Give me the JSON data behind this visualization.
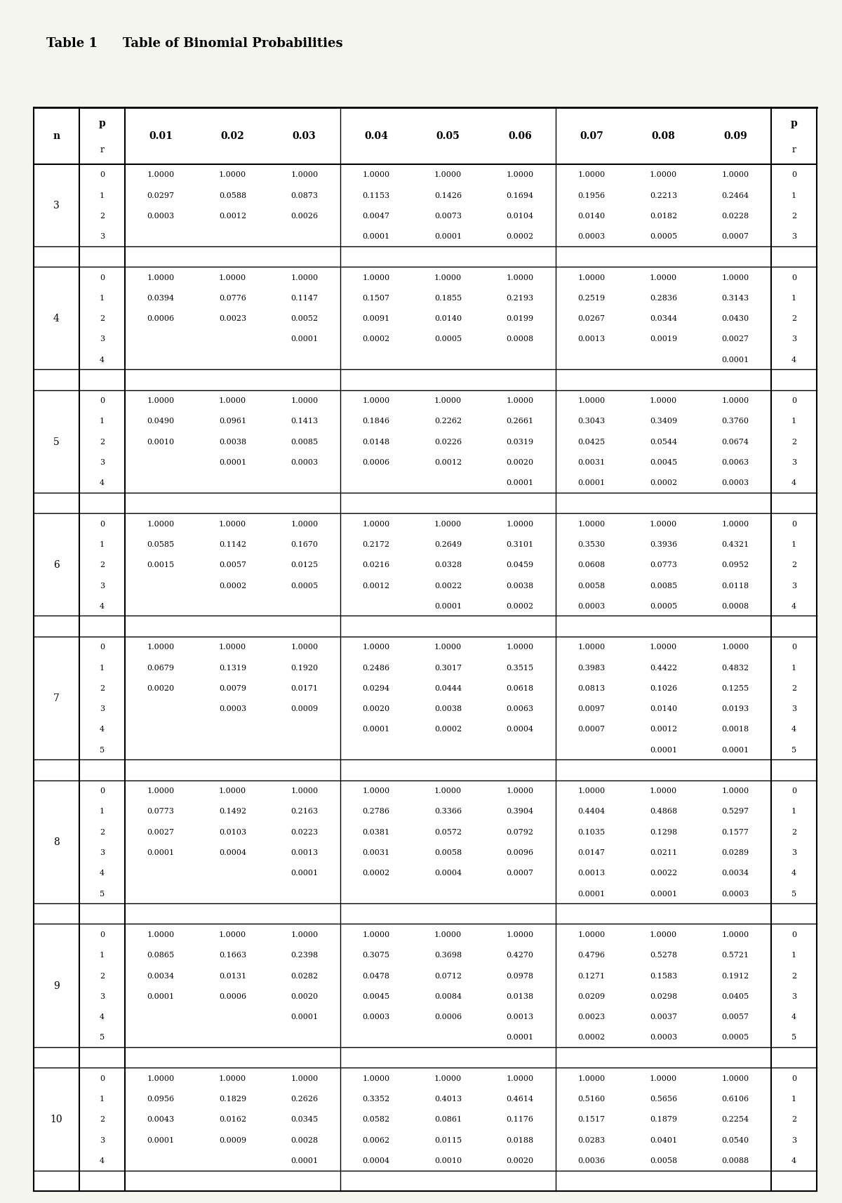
{
  "title_label": "Table 1",
  "title_rest": "   Table of Binomial Probabilities",
  "sections": [
    {
      "n": "3",
      "rows": [
        {
          "r": "0",
          "vals": [
            "1.0000",
            "1.0000",
            "1.0000",
            "1.0000",
            "1.0000",
            "1.0000",
            "1.0000",
            "1.0000",
            "1.0000"
          ]
        },
        {
          "r": "1",
          "vals": [
            "0.0297",
            "0.0588",
            "0.0873",
            "0.1153",
            "0.1426",
            "0.1694",
            "0.1956",
            "0.2213",
            "0.2464"
          ]
        },
        {
          "r": "2",
          "vals": [
            "0.0003",
            "0.0012",
            "0.0026",
            "0.0047",
            "0.0073",
            "0.0104",
            "0.0140",
            "0.0182",
            "0.0228"
          ]
        },
        {
          "r": "3",
          "vals": [
            "",
            "",
            "",
            "0.0001",
            "0.0001",
            "0.0002",
            "0.0003",
            "0.0005",
            "0.0007"
          ]
        }
      ]
    },
    {
      "n": "4",
      "rows": [
        {
          "r": "0",
          "vals": [
            "1.0000",
            "1.0000",
            "1.0000",
            "1.0000",
            "1.0000",
            "1.0000",
            "1.0000",
            "1.0000",
            "1.0000"
          ]
        },
        {
          "r": "1",
          "vals": [
            "0.0394",
            "0.0776",
            "0.1147",
            "0.1507",
            "0.1855",
            "0.2193",
            "0.2519",
            "0.2836",
            "0.3143"
          ]
        },
        {
          "r": "2",
          "vals": [
            "0.0006",
            "0.0023",
            "0.0052",
            "0.0091",
            "0.0140",
            "0.0199",
            "0.0267",
            "0.0344",
            "0.0430"
          ]
        },
        {
          "r": "3",
          "vals": [
            "",
            "",
            "0.0001",
            "0.0002",
            "0.0005",
            "0.0008",
            "0.0013",
            "0.0019",
            "0.0027"
          ]
        },
        {
          "r": "4",
          "vals": [
            "",
            "",
            "",
            "",
            "",
            "",
            "",
            "",
            "0.0001"
          ]
        }
      ]
    },
    {
      "n": "5",
      "rows": [
        {
          "r": "0",
          "vals": [
            "1.0000",
            "1.0000",
            "1.0000",
            "1.0000",
            "1.0000",
            "1.0000",
            "1.0000",
            "1.0000",
            "1.0000"
          ]
        },
        {
          "r": "1",
          "vals": [
            "0.0490",
            "0.0961",
            "0.1413",
            "0.1846",
            "0.2262",
            "0.2661",
            "0.3043",
            "0.3409",
            "0.3760"
          ]
        },
        {
          "r": "2",
          "vals": [
            "0.0010",
            "0.0038",
            "0.0085",
            "0.0148",
            "0.0226",
            "0.0319",
            "0.0425",
            "0.0544",
            "0.0674"
          ]
        },
        {
          "r": "3",
          "vals": [
            "",
            "0.0001",
            "0.0003",
            "0.0006",
            "0.0012",
            "0.0020",
            "0.0031",
            "0.0045",
            "0.0063"
          ]
        },
        {
          "r": "4",
          "vals": [
            "",
            "",
            "",
            "",
            "",
            "0.0001",
            "0.0001",
            "0.0002",
            "0.0003"
          ]
        }
      ]
    },
    {
      "n": "6",
      "rows": [
        {
          "r": "0",
          "vals": [
            "1.0000",
            "1.0000",
            "1.0000",
            "1.0000",
            "1.0000",
            "1.0000",
            "1.0000",
            "1.0000",
            "1.0000"
          ]
        },
        {
          "r": "1",
          "vals": [
            "0.0585",
            "0.1142",
            "0.1670",
            "0.2172",
            "0.2649",
            "0.3101",
            "0.3530",
            "0.3936",
            "0.4321"
          ]
        },
        {
          "r": "2",
          "vals": [
            "0.0015",
            "0.0057",
            "0.0125",
            "0.0216",
            "0.0328",
            "0.0459",
            "0.0608",
            "0.0773",
            "0.0952"
          ]
        },
        {
          "r": "3",
          "vals": [
            "",
            "0.0002",
            "0.0005",
            "0.0012",
            "0.0022",
            "0.0038",
            "0.0058",
            "0.0085",
            "0.0118"
          ]
        },
        {
          "r": "4",
          "vals": [
            "",
            "",
            "",
            "",
            "0.0001",
            "0.0002",
            "0.0003",
            "0.0005",
            "0.0008"
          ]
        }
      ]
    },
    {
      "n": "7",
      "rows": [
        {
          "r": "0",
          "vals": [
            "1.0000",
            "1.0000",
            "1.0000",
            "1.0000",
            "1.0000",
            "1.0000",
            "1.0000",
            "1.0000",
            "1.0000"
          ]
        },
        {
          "r": "1",
          "vals": [
            "0.0679",
            "0.1319",
            "0.1920",
            "0.2486",
            "0.3017",
            "0.3515",
            "0.3983",
            "0.4422",
            "0.4832"
          ]
        },
        {
          "r": "2",
          "vals": [
            "0.0020",
            "0.0079",
            "0.0171",
            "0.0294",
            "0.0444",
            "0.0618",
            "0.0813",
            "0.1026",
            "0.1255"
          ]
        },
        {
          "r": "3",
          "vals": [
            "",
            "0.0003",
            "0.0009",
            "0.0020",
            "0.0038",
            "0.0063",
            "0.0097",
            "0.0140",
            "0.0193"
          ]
        },
        {
          "r": "4",
          "vals": [
            "",
            "",
            "",
            "0.0001",
            "0.0002",
            "0.0004",
            "0.0007",
            "0.0012",
            "0.0018"
          ]
        },
        {
          "r": "5",
          "vals": [
            "",
            "",
            "",
            "",
            "",
            "",
            "",
            "0.0001",
            "0.0001"
          ]
        }
      ]
    },
    {
      "n": "8",
      "rows": [
        {
          "r": "0",
          "vals": [
            "1.0000",
            "1.0000",
            "1.0000",
            "1.0000",
            "1.0000",
            "1.0000",
            "1.0000",
            "1.0000",
            "1.0000"
          ]
        },
        {
          "r": "1",
          "vals": [
            "0.0773",
            "0.1492",
            "0.2163",
            "0.2786",
            "0.3366",
            "0.3904",
            "0.4404",
            "0.4868",
            "0.5297"
          ]
        },
        {
          "r": "2",
          "vals": [
            "0.0027",
            "0.0103",
            "0.0223",
            "0.0381",
            "0.0572",
            "0.0792",
            "0.1035",
            "0.1298",
            "0.1577"
          ]
        },
        {
          "r": "3",
          "vals": [
            "0.0001",
            "0.0004",
            "0.0013",
            "0.0031",
            "0.0058",
            "0.0096",
            "0.0147",
            "0.0211",
            "0.0289"
          ]
        },
        {
          "r": "4",
          "vals": [
            "",
            "",
            "0.0001",
            "0.0002",
            "0.0004",
            "0.0007",
            "0.0013",
            "0.0022",
            "0.0034"
          ]
        },
        {
          "r": "5",
          "vals": [
            "",
            "",
            "",
            "",
            "",
            "",
            "0.0001",
            "0.0001",
            "0.0003"
          ]
        }
      ]
    },
    {
      "n": "9",
      "rows": [
        {
          "r": "0",
          "vals": [
            "1.0000",
            "1.0000",
            "1.0000",
            "1.0000",
            "1.0000",
            "1.0000",
            "1.0000",
            "1.0000",
            "1.0000"
          ]
        },
        {
          "r": "1",
          "vals": [
            "0.0865",
            "0.1663",
            "0.2398",
            "0.3075",
            "0.3698",
            "0.4270",
            "0.4796",
            "0.5278",
            "0.5721"
          ]
        },
        {
          "r": "2",
          "vals": [
            "0.0034",
            "0.0131",
            "0.0282",
            "0.0478",
            "0.0712",
            "0.0978",
            "0.1271",
            "0.1583",
            "0.1912"
          ]
        },
        {
          "r": "3",
          "vals": [
            "0.0001",
            "0.0006",
            "0.0020",
            "0.0045",
            "0.0084",
            "0.0138",
            "0.0209",
            "0.0298",
            "0.0405"
          ]
        },
        {
          "r": "4",
          "vals": [
            "",
            "",
            "0.0001",
            "0.0003",
            "0.0006",
            "0.0013",
            "0.0023",
            "0.0037",
            "0.0057"
          ]
        },
        {
          "r": "5",
          "vals": [
            "",
            "",
            "",
            "",
            "",
            "0.0001",
            "0.0002",
            "0.0003",
            "0.0005"
          ]
        }
      ]
    },
    {
      "n": "10",
      "rows": [
        {
          "r": "0",
          "vals": [
            "1.0000",
            "1.0000",
            "1.0000",
            "1.0000",
            "1.0000",
            "1.0000",
            "1.0000",
            "1.0000",
            "1.0000"
          ]
        },
        {
          "r": "1",
          "vals": [
            "0.0956",
            "0.1829",
            "0.2626",
            "0.3352",
            "0.4013",
            "0.4614",
            "0.5160",
            "0.5656",
            "0.6106"
          ]
        },
        {
          "r": "2",
          "vals": [
            "0.0043",
            "0.0162",
            "0.0345",
            "0.0582",
            "0.0861",
            "0.1176",
            "0.1517",
            "0.1879",
            "0.2254"
          ]
        },
        {
          "r": "3",
          "vals": [
            "0.0001",
            "0.0009",
            "0.0028",
            "0.0062",
            "0.0115",
            "0.0188",
            "0.0283",
            "0.0401",
            "0.0540"
          ]
        },
        {
          "r": "4",
          "vals": [
            "",
            "",
            "0.0001",
            "0.0004",
            "0.0010",
            "0.0020",
            "0.0036",
            "0.0058",
            "0.0088"
          ]
        }
      ]
    }
  ],
  "bg_color": "#f5f5f0",
  "table_bg": "#ffffff"
}
